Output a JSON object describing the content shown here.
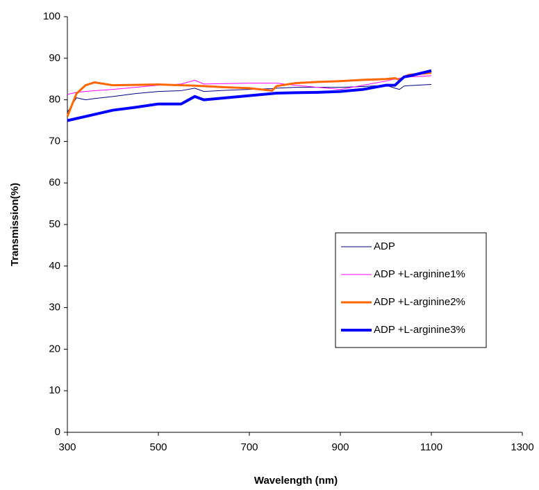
{
  "chart_data": {
    "type": "line",
    "xlabel": "Wavelength (nm)",
    "ylabel": "Transmission(%)",
    "x": [
      300,
      320,
      340,
      360,
      400,
      450,
      500,
      550,
      580,
      600,
      650,
      700,
      750,
      760,
      800,
      850,
      900,
      950,
      1000,
      1020,
      1030,
      1040,
      1050,
      1100
    ],
    "series": [
      {
        "name": "ADP",
        "color": "#000080",
        "width": 1,
        "values": [
          77,
          80.5,
          80,
          80.3,
          80.8,
          81.5,
          82,
          82.2,
          82.8,
          82,
          82.3,
          82.5,
          82.7,
          82.8,
          83,
          83,
          83,
          83.2,
          83.5,
          82.8,
          82.5,
          83.3,
          83.4,
          83.7
        ]
      },
      {
        "name": "ADP +L-arginine1%",
        "color": "#ff00ff",
        "width": 1,
        "values": [
          81.3,
          81.8,
          82,
          82.2,
          82.5,
          83,
          83.5,
          83.8,
          84.7,
          83.8,
          83.9,
          84,
          84,
          84,
          83.5,
          83,
          82.5,
          83.5,
          84.5,
          85,
          85.2,
          85.4,
          85.5,
          85.8
        ]
      },
      {
        "name": "ADP +L-arginine2%",
        "color": "#ff6600",
        "width": 3,
        "values": [
          76,
          81.5,
          83.5,
          84.2,
          83.5,
          83.6,
          83.7,
          83.5,
          83.4,
          83.3,
          83,
          82.8,
          82.2,
          83.3,
          84,
          84.3,
          84.5,
          84.8,
          85,
          85.2,
          84.8,
          85.5,
          86,
          86.5
        ]
      },
      {
        "name": "ADP +L-arginine3%",
        "color": "#0000ff",
        "width": 4,
        "values": [
          75,
          75.5,
          76,
          76.5,
          77.5,
          78.2,
          79,
          79,
          80.8,
          80,
          80.5,
          81,
          81.5,
          81.6,
          81.7,
          81.8,
          82,
          82.5,
          83.5,
          83.5,
          84.5,
          85.5,
          85.7,
          87
        ]
      }
    ],
    "xlim": [
      300,
      1300
    ],
    "xticks": [
      300,
      500,
      700,
      900,
      1100,
      1300
    ],
    "ylim": [
      0,
      100
    ],
    "yticks": [
      0,
      10,
      20,
      30,
      40,
      50,
      60,
      70,
      80,
      90,
      100
    ],
    "grid": false
  }
}
